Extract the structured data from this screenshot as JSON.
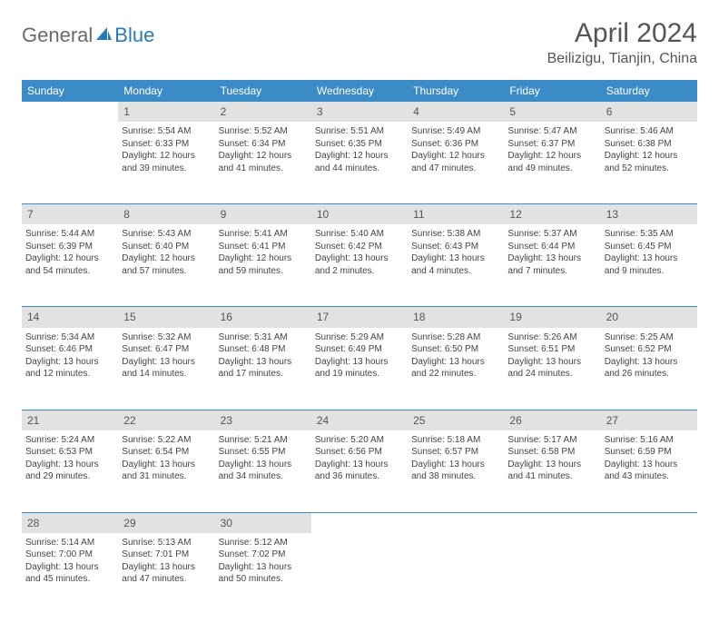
{
  "brand": {
    "part1": "General",
    "part2": "Blue",
    "accent_color": "#2a7ab8"
  },
  "title": "April 2024",
  "location": "Beilizigu, Tianjin, China",
  "day_headers": [
    "Sunday",
    "Monday",
    "Tuesday",
    "Wednesday",
    "Thursday",
    "Friday",
    "Saturday"
  ],
  "colors": {
    "header_bg": "#3b8bc7",
    "header_text": "#ffffff",
    "daynum_bg": "#e2e2e2",
    "text": "#444444",
    "rule": "#3b8bc7"
  },
  "fonts": {
    "body_size": 10,
    "header_size": 12,
    "title_size": 30,
    "location_size": 16
  },
  "weeks": [
    {
      "nums": [
        "",
        "1",
        "2",
        "3",
        "4",
        "5",
        "6"
      ],
      "cells": [
        {},
        {
          "sunrise": "Sunrise: 5:54 AM",
          "sunset": "Sunset: 6:33 PM",
          "daylight": "Daylight: 12 hours and 39 minutes."
        },
        {
          "sunrise": "Sunrise: 5:52 AM",
          "sunset": "Sunset: 6:34 PM",
          "daylight": "Daylight: 12 hours and 41 minutes."
        },
        {
          "sunrise": "Sunrise: 5:51 AM",
          "sunset": "Sunset: 6:35 PM",
          "daylight": "Daylight: 12 hours and 44 minutes."
        },
        {
          "sunrise": "Sunrise: 5:49 AM",
          "sunset": "Sunset: 6:36 PM",
          "daylight": "Daylight: 12 hours and 47 minutes."
        },
        {
          "sunrise": "Sunrise: 5:47 AM",
          "sunset": "Sunset: 6:37 PM",
          "daylight": "Daylight: 12 hours and 49 minutes."
        },
        {
          "sunrise": "Sunrise: 5:46 AM",
          "sunset": "Sunset: 6:38 PM",
          "daylight": "Daylight: 12 hours and 52 minutes."
        }
      ]
    },
    {
      "nums": [
        "7",
        "8",
        "9",
        "10",
        "11",
        "12",
        "13"
      ],
      "cells": [
        {
          "sunrise": "Sunrise: 5:44 AM",
          "sunset": "Sunset: 6:39 PM",
          "daylight": "Daylight: 12 hours and 54 minutes."
        },
        {
          "sunrise": "Sunrise: 5:43 AM",
          "sunset": "Sunset: 6:40 PM",
          "daylight": "Daylight: 12 hours and 57 minutes."
        },
        {
          "sunrise": "Sunrise: 5:41 AM",
          "sunset": "Sunset: 6:41 PM",
          "daylight": "Daylight: 12 hours and 59 minutes."
        },
        {
          "sunrise": "Sunrise: 5:40 AM",
          "sunset": "Sunset: 6:42 PM",
          "daylight": "Daylight: 13 hours and 2 minutes."
        },
        {
          "sunrise": "Sunrise: 5:38 AM",
          "sunset": "Sunset: 6:43 PM",
          "daylight": "Daylight: 13 hours and 4 minutes."
        },
        {
          "sunrise": "Sunrise: 5:37 AM",
          "sunset": "Sunset: 6:44 PM",
          "daylight": "Daylight: 13 hours and 7 minutes."
        },
        {
          "sunrise": "Sunrise: 5:35 AM",
          "sunset": "Sunset: 6:45 PM",
          "daylight": "Daylight: 13 hours and 9 minutes."
        }
      ]
    },
    {
      "nums": [
        "14",
        "15",
        "16",
        "17",
        "18",
        "19",
        "20"
      ],
      "cells": [
        {
          "sunrise": "Sunrise: 5:34 AM",
          "sunset": "Sunset: 6:46 PM",
          "daylight": "Daylight: 13 hours and 12 minutes."
        },
        {
          "sunrise": "Sunrise: 5:32 AM",
          "sunset": "Sunset: 6:47 PM",
          "daylight": "Daylight: 13 hours and 14 minutes."
        },
        {
          "sunrise": "Sunrise: 5:31 AM",
          "sunset": "Sunset: 6:48 PM",
          "daylight": "Daylight: 13 hours and 17 minutes."
        },
        {
          "sunrise": "Sunrise: 5:29 AM",
          "sunset": "Sunset: 6:49 PM",
          "daylight": "Daylight: 13 hours and 19 minutes."
        },
        {
          "sunrise": "Sunrise: 5:28 AM",
          "sunset": "Sunset: 6:50 PM",
          "daylight": "Daylight: 13 hours and 22 minutes."
        },
        {
          "sunrise": "Sunrise: 5:26 AM",
          "sunset": "Sunset: 6:51 PM",
          "daylight": "Daylight: 13 hours and 24 minutes."
        },
        {
          "sunrise": "Sunrise: 5:25 AM",
          "sunset": "Sunset: 6:52 PM",
          "daylight": "Daylight: 13 hours and 26 minutes."
        }
      ]
    },
    {
      "nums": [
        "21",
        "22",
        "23",
        "24",
        "25",
        "26",
        "27"
      ],
      "cells": [
        {
          "sunrise": "Sunrise: 5:24 AM",
          "sunset": "Sunset: 6:53 PM",
          "daylight": "Daylight: 13 hours and 29 minutes."
        },
        {
          "sunrise": "Sunrise: 5:22 AM",
          "sunset": "Sunset: 6:54 PM",
          "daylight": "Daylight: 13 hours and 31 minutes."
        },
        {
          "sunrise": "Sunrise: 5:21 AM",
          "sunset": "Sunset: 6:55 PM",
          "daylight": "Daylight: 13 hours and 34 minutes."
        },
        {
          "sunrise": "Sunrise: 5:20 AM",
          "sunset": "Sunset: 6:56 PM",
          "daylight": "Daylight: 13 hours and 36 minutes."
        },
        {
          "sunrise": "Sunrise: 5:18 AM",
          "sunset": "Sunset: 6:57 PM",
          "daylight": "Daylight: 13 hours and 38 minutes."
        },
        {
          "sunrise": "Sunrise: 5:17 AM",
          "sunset": "Sunset: 6:58 PM",
          "daylight": "Daylight: 13 hours and 41 minutes."
        },
        {
          "sunrise": "Sunrise: 5:16 AM",
          "sunset": "Sunset: 6:59 PM",
          "daylight": "Daylight: 13 hours and 43 minutes."
        }
      ]
    },
    {
      "nums": [
        "28",
        "29",
        "30",
        "",
        "",
        "",
        ""
      ],
      "cells": [
        {
          "sunrise": "Sunrise: 5:14 AM",
          "sunset": "Sunset: 7:00 PM",
          "daylight": "Daylight: 13 hours and 45 minutes."
        },
        {
          "sunrise": "Sunrise: 5:13 AM",
          "sunset": "Sunset: 7:01 PM",
          "daylight": "Daylight: 13 hours and 47 minutes."
        },
        {
          "sunrise": "Sunrise: 5:12 AM",
          "sunset": "Sunset: 7:02 PM",
          "daylight": "Daylight: 13 hours and 50 minutes."
        },
        {},
        {},
        {},
        {}
      ]
    }
  ]
}
